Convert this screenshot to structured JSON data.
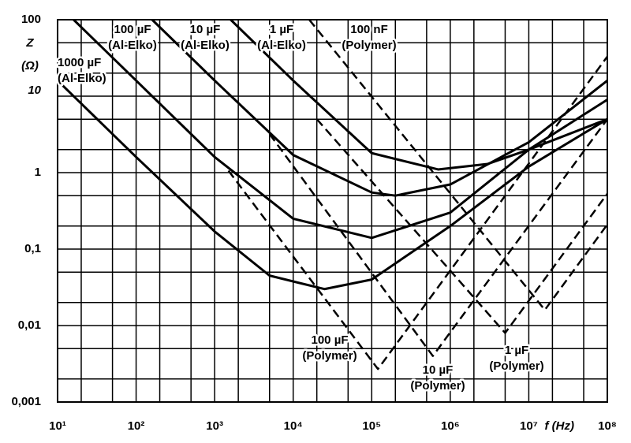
{
  "chart_data": {
    "type": "line",
    "xlabel": "f (Hz)",
    "ylabel": "Z",
    "yunit": "(Ω)",
    "xscale": "log",
    "yscale": "log",
    "grid": true,
    "xlim": [
      10,
      100000000
    ],
    "ylim": [
      0.001,
      100
    ],
    "xticks": [
      {
        "value": 10,
        "label": "10¹"
      },
      {
        "value": 100,
        "label": "10²"
      },
      {
        "value": 1000,
        "label": "10³"
      },
      {
        "value": 10000,
        "label": "10⁴"
      },
      {
        "value": 100000,
        "label": "10⁵"
      },
      {
        "value": 1000000,
        "label": "10⁶"
      },
      {
        "value": 10000000,
        "label": "10⁷"
      },
      {
        "value": 100000000,
        "label": "10⁸"
      }
    ],
    "yticks": [
      {
        "value": 0.001,
        "label": "0,001"
      },
      {
        "value": 0.01,
        "label": "0,01"
      },
      {
        "value": 0.1,
        "label": "0,1"
      },
      1,
      10,
      100
    ],
    "x_minor_gridlines": [
      20,
      50,
      200,
      500,
      2000,
      5000,
      20000,
      50000,
      200000,
      500000,
      2000000,
      5000000,
      20000000,
      50000000
    ],
    "y_minor_gridlines": [
      0.002,
      0.005,
      0.02,
      0.05,
      0.2,
      0.5,
      2,
      5,
      20,
      50
    ],
    "series": [
      {
        "label_lines": [
          "1000 µF",
          "(Al-Elko)"
        ],
        "color": "#000000",
        "line_style": "solid",
        "x": [
          10,
          100,
          1000,
          5000,
          25000,
          100000,
          1000000,
          10000000,
          100000000
        ],
        "values": [
          16,
          1.6,
          0.17,
          0.045,
          0.03,
          0.04,
          0.2,
          1.2,
          5
        ]
      },
      {
        "label_lines": [
          "100 µF",
          "(Al-Elko)"
        ],
        "color": "#000000",
        "line_style": "solid",
        "x": [
          16,
          100,
          1000,
          10000,
          100000,
          1000000,
          10000000,
          100000000
        ],
        "values": [
          100,
          16,
          1.6,
          0.25,
          0.14,
          0.3,
          2,
          9
        ]
      },
      {
        "label_lines": [
          "10 µF",
          "(Al-Elko)"
        ],
        "color": "#000000",
        "line_style": "solid",
        "x": [
          160,
          1000,
          10000,
          100000,
          200000,
          1000000,
          10000000,
          100000000
        ],
        "values": [
          100,
          16,
          1.7,
          0.55,
          0.5,
          0.7,
          2.5,
          16
        ]
      },
      {
        "label_lines": [
          "1 µF",
          "(Al-Elko)"
        ],
        "color": "#000000",
        "line_style": "solid",
        "x": [
          1600,
          10000,
          100000,
          700000,
          3000000,
          10000000,
          100000000
        ],
        "values": [
          100,
          16,
          1.8,
          1.1,
          1.3,
          2,
          5
        ]
      },
      {
        "label_lines": [
          "100 nF",
          "(Polymer)"
        ],
        "color": "#000000",
        "line_style": "dashed",
        "x": [
          16000,
          16000000,
          100000000
        ],
        "values": [
          100,
          0.016,
          0.21
        ]
      },
      {
        "label_lines": [
          "100 µF",
          "(Polymer)"
        ],
        "color": "#000000",
        "line_style": "dashed",
        "x": [
          1500,
          120000,
          100000000
        ],
        "values": [
          1.06,
          0.0027,
          33
        ]
      },
      {
        "label_lines": [
          "10 µF",
          "(Polymer)"
        ],
        "color": "#000000",
        "line_style": "dashed",
        "x": [
          5000,
          600000,
          100000000
        ],
        "values": [
          3.2,
          0.004,
          5
        ]
      },
      {
        "label_lines": [
          "1 µF",
          "(Polymer)"
        ],
        "color": "#000000",
        "line_style": "dashed",
        "x": [
          20000,
          5000000,
          100000000
        ],
        "values": [
          5,
          0.008,
          0.53
        ]
      }
    ]
  }
}
